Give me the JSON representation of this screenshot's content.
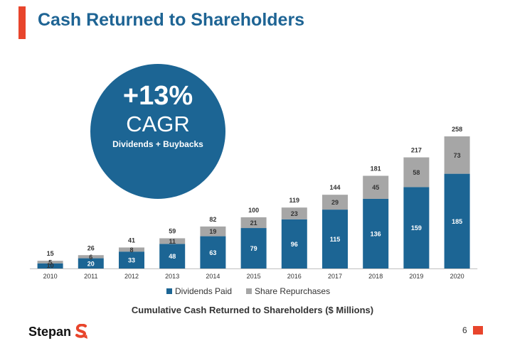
{
  "header": {
    "title": "Cash Returned to Shareholders"
  },
  "cagr": {
    "value": "+13%",
    "label": "CAGR",
    "sub": "Dividends + Buybacks"
  },
  "legend": {
    "dividends": "Dividends Paid",
    "repurchases": "Share Repurchases"
  },
  "caption": "Cumulative Cash Returned to Shareholders ($ Millions)",
  "footer": {
    "brand": "Stepan",
    "page": "6"
  },
  "colors": {
    "dividends": "#1c6594",
    "repurchases": "#a6a6a6",
    "accent": "#e8452c",
    "title": "#1e6494"
  },
  "chart_data": {
    "type": "bar",
    "stacked": true,
    "categories": [
      "2010",
      "2011",
      "2012",
      "2013",
      "2014",
      "2015",
      "2016",
      "2017",
      "2018",
      "2019",
      "2020"
    ],
    "series": [
      {
        "name": "Dividends Paid",
        "values": [
          10,
          20,
          33,
          48,
          63,
          79,
          96,
          115,
          136,
          159,
          185
        ]
      },
      {
        "name": "Share Repurchases",
        "values": [
          5,
          6,
          8,
          11,
          19,
          21,
          23,
          29,
          45,
          58,
          73
        ]
      }
    ],
    "totals": [
      15,
      26,
      41,
      59,
      82,
      100,
      119,
      144,
      181,
      217,
      258
    ],
    "title": "Cumulative Cash Returned to Shareholders ($ Millions)",
    "xlabel": "",
    "ylabel": "",
    "ylim": [
      0,
      258
    ],
    "grid": false,
    "legend": "bottom"
  }
}
